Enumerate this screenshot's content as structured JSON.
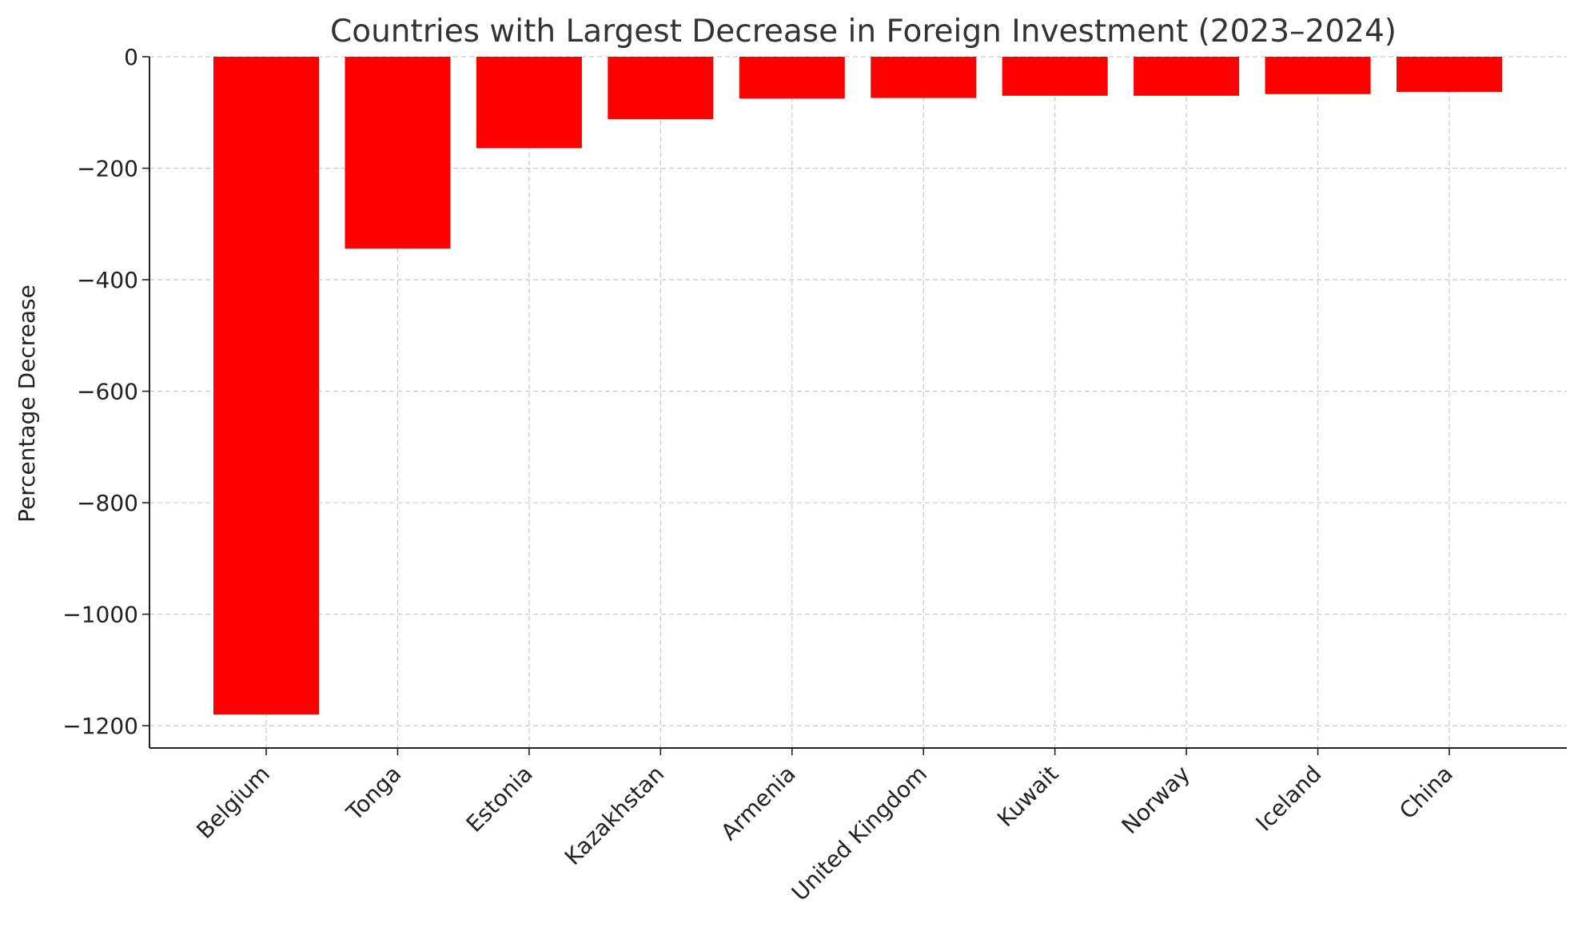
{
  "chart_data": {
    "type": "bar",
    "title": "Countries with Largest Decrease in Foreign Investment (2023–2024)",
    "xlabel": "",
    "ylabel": "Percentage Decrease",
    "categories": [
      "Belgium",
      "Tonga",
      "Estonia",
      "Kazakhstan",
      "Armenia",
      "United Kingdom",
      "Kuwait",
      "Norway",
      "Iceland",
      "China"
    ],
    "values": [
      -1180,
      -344,
      -164,
      -112,
      -75,
      -74,
      -70,
      -70,
      -67,
      -63
    ],
    "ylim": [
      -1240,
      0
    ],
    "yticks": [
      0,
      -200,
      -400,
      -600,
      -800,
      -1000,
      -1200
    ],
    "ytick_labels": [
      "0",
      "−200",
      "−400",
      "−600",
      "−800",
      "−1000",
      "−1200"
    ],
    "grid": true,
    "bar_color": "#ff0000",
    "grid_color": "#c8c8c8",
    "text_color": "#222222",
    "title_color": "#333333"
  }
}
